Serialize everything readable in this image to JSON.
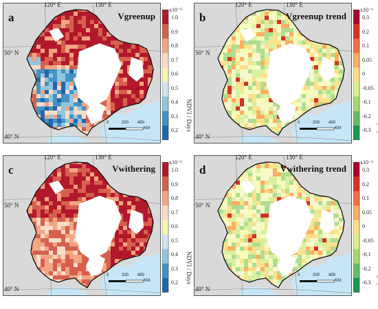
{
  "panels": [
    {
      "letter": "a",
      "title": "Vgreenup",
      "palette": "rate"
    },
    {
      "letter": "b",
      "title": "Vgreenup trend",
      "palette": "trend"
    },
    {
      "letter": "c",
      "title": "Vwithering",
      "palette": "rate"
    },
    {
      "letter": "d",
      "title": "Vwithering trend",
      "palette": "trend"
    }
  ],
  "coordinates": {
    "lon_120": "120° E",
    "lon_130": "130° E",
    "lat_50": "50° N",
    "lat_40": "40° N"
  },
  "scalebar": {
    "labels": [
      "0",
      "200",
      "400"
    ],
    "unit": "KM"
  },
  "colorbars": {
    "rate": {
      "exponent": "x10⁻²",
      "ticks": [
        "1.0",
        "0.9",
        "0.8",
        "0.7",
        "0.6",
        "0.5",
        "0.4",
        "0.3",
        "0.2"
      ],
      "unit": "NDVI / Days",
      "colors": [
        "#b2182b",
        "#d6604d",
        "#f4a582",
        "#fddbc7",
        "#f7f7b0",
        "#d1e5f0",
        "#92c5de",
        "#4393c3",
        "#2166ac"
      ]
    },
    "trend": {
      "exponent": "x10⁻³",
      "ticks": [
        "0.3",
        "0.2",
        "0.1",
        "0.05",
        "0",
        "-0.05",
        "-0.1",
        "-0.2",
        "-0.3"
      ],
      "unit": "NDVI/Days·year⁻¹",
      "colors": [
        "#a50026",
        "#d73027",
        "#f46d43",
        "#fdae61",
        "#fee08b",
        "#d9ef8b",
        "#a6d96a",
        "#66bd63",
        "#1a9850"
      ]
    }
  },
  "colors": {
    "land_outside": "#d9d9d9",
    "ocean": "#c6e6f7",
    "nodata": "#ffffff"
  }
}
